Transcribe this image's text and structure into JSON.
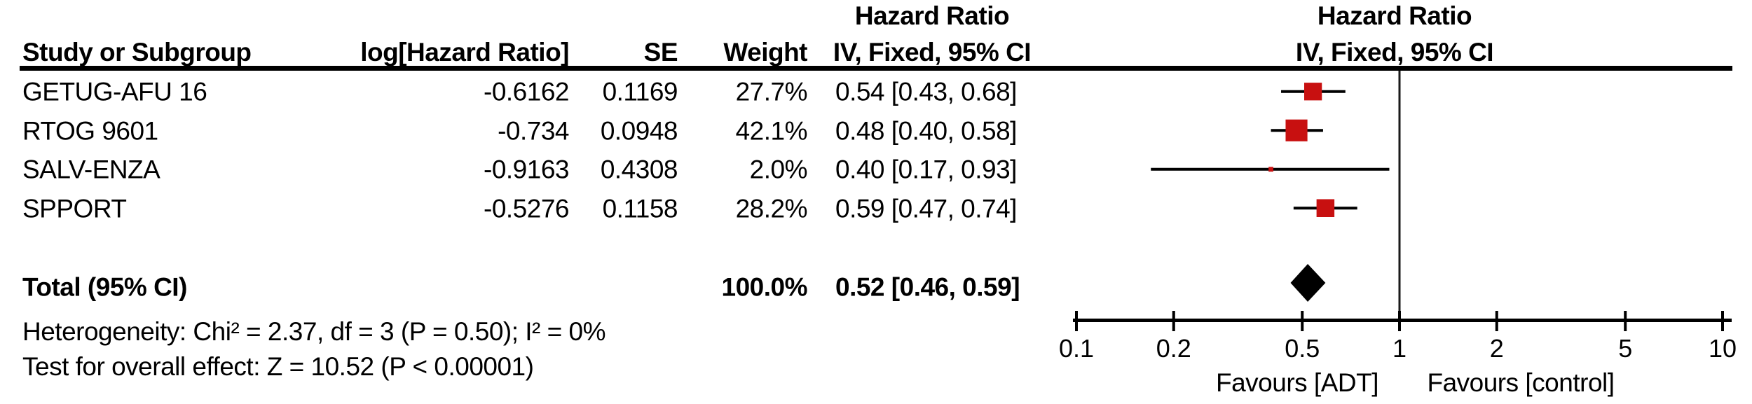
{
  "figure": {
    "bg_color": "#ffffff",
    "text_color": "#000000",
    "marker_color": "#c81010",
    "diamond_color": "#000000",
    "ci_line_color": "#000000"
  },
  "table": {
    "headers": {
      "effect_col_title": "Hazard Ratio",
      "plot_col_title": "Hazard Ratio",
      "study": "Study or Subgroup",
      "log_hr": "log[Hazard Ratio]",
      "se": "SE",
      "weight": "Weight",
      "effect_ci": "IV, Fixed, 95% CI",
      "plot_ci": "IV, Fixed, 95% CI"
    },
    "rows": [
      {
        "study": "GETUG-AFU 16",
        "log_hr": "-0.6162",
        "se": "0.1169",
        "weight": "27.7%",
        "ci": "0.54 [0.43, 0.68]"
      },
      {
        "study": "RTOG 9601",
        "log_hr": "-0.734",
        "se": "0.0948",
        "weight": "42.1%",
        "ci": "0.48 [0.40, 0.58]"
      },
      {
        "study": "SALV-ENZA",
        "log_hr": "-0.9163",
        "se": "0.4308",
        "weight": "2.0%",
        "ci": "0.40 [0.17, 0.93]"
      },
      {
        "study": "SPPORT",
        "log_hr": "-0.5276",
        "se": "0.1158",
        "weight": "28.2%",
        "ci": "0.59 [0.47, 0.74]"
      }
    ],
    "total": {
      "label": "Total (95% CI)",
      "weight": "100.0%",
      "ci": "0.52 [0.46, 0.59]"
    },
    "footer": {
      "heterogeneity": "Heterogeneity: Chi² = 2.37, df = 3 (P = 0.50); I² = 0%",
      "overall_effect": "Test for overall effect: Z = 10.52 (P < 0.00001)"
    }
  },
  "chart_data": {
    "type": "forest",
    "x_scale": "log10",
    "x_range": [
      0.1,
      10
    ],
    "axis_ticks": [
      0.1,
      0.2,
      0.5,
      1,
      2,
      5,
      10
    ],
    "null_line_x": 1,
    "grid": false,
    "model": "IV, Fixed, 95% CI",
    "studies": [
      {
        "name": "GETUG-AFU 16",
        "hr": 0.54,
        "ci_low": 0.43,
        "ci_high": 0.68,
        "weight_pct": 27.7
      },
      {
        "name": "RTOG 9601",
        "hr": 0.48,
        "ci_low": 0.4,
        "ci_high": 0.58,
        "weight_pct": 42.1
      },
      {
        "name": "SALV-ENZA",
        "hr": 0.4,
        "ci_low": 0.17,
        "ci_high": 0.93,
        "weight_pct": 2.0
      },
      {
        "name": "SPPORT",
        "hr": 0.59,
        "ci_low": 0.47,
        "ci_high": 0.74,
        "weight_pct": 28.2
      }
    ],
    "total": {
      "label": "Total (95% CI)",
      "hr": 0.52,
      "ci_low": 0.46,
      "ci_high": 0.59,
      "weight_pct": 100.0
    },
    "favours_left": "Favours [ADT]",
    "favours_right": "Favours [control]"
  }
}
